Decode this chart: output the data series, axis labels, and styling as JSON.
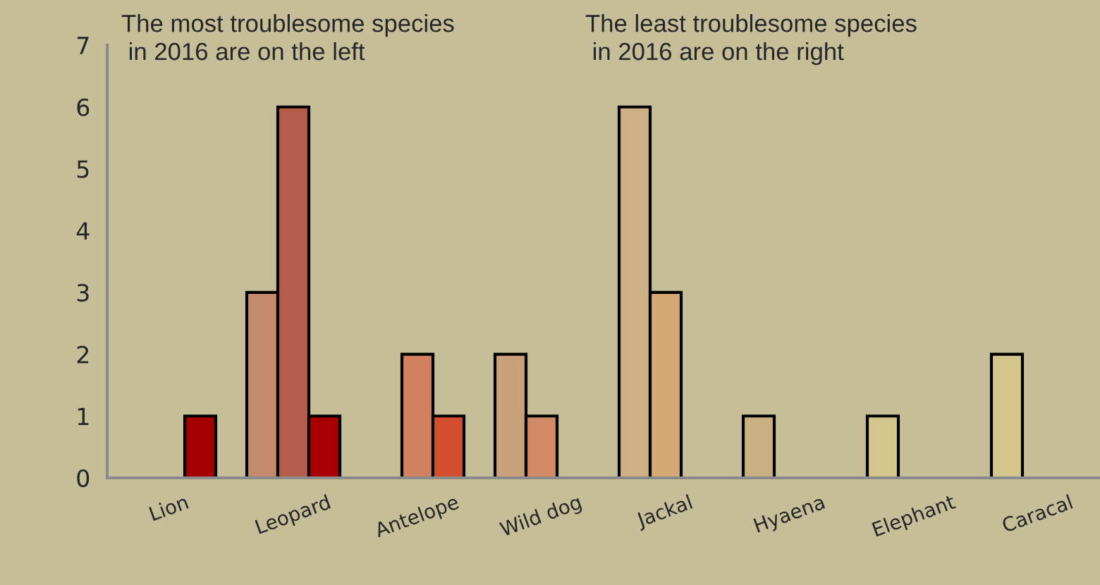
{
  "chart_data": {
    "type": "bar",
    "categories": [
      "Lion",
      "Leopard",
      "Antelope",
      "Wild dog",
      "Jackal",
      "Hyaena",
      "Elephant",
      "Caracal"
    ],
    "series": [
      {
        "values": [
          null,
          3,
          null,
          2,
          6,
          1,
          1,
          2
        ],
        "colors": [
          "#a50000",
          "#c48a6c",
          "#d08260",
          "#c9a07a",
          "#cdb085",
          "#c9b080",
          "#d3c58c",
          "#d3c58c"
        ]
      },
      {
        "values": [
          null,
          6,
          2,
          1,
          3,
          null,
          null,
          null
        ],
        "colors": [
          "#a50000",
          "#b55c4a",
          "#d08260",
          "#d08a65",
          "#d4a874",
          "#c9b080",
          "#d3c58c",
          "#d3c58c"
        ]
      },
      {
        "values": [
          1,
          1,
          1,
          null,
          null,
          null,
          null,
          null
        ],
        "colors": [
          "#a50000",
          "#a80000",
          "#d44e2e",
          "#d08a65",
          "#d4a874",
          "#c9b080",
          "#d3c58c",
          "#d3c58c"
        ]
      }
    ],
    "ylim": [
      0,
      7
    ],
    "yticks": [
      0,
      1,
      2,
      3,
      4,
      5,
      6,
      7
    ],
    "grid": false,
    "legend": false,
    "annotations": [
      "The most troublesome species\n in 2016 are on the left",
      "The least troublesome species\n in 2016 are on the right"
    ]
  }
}
